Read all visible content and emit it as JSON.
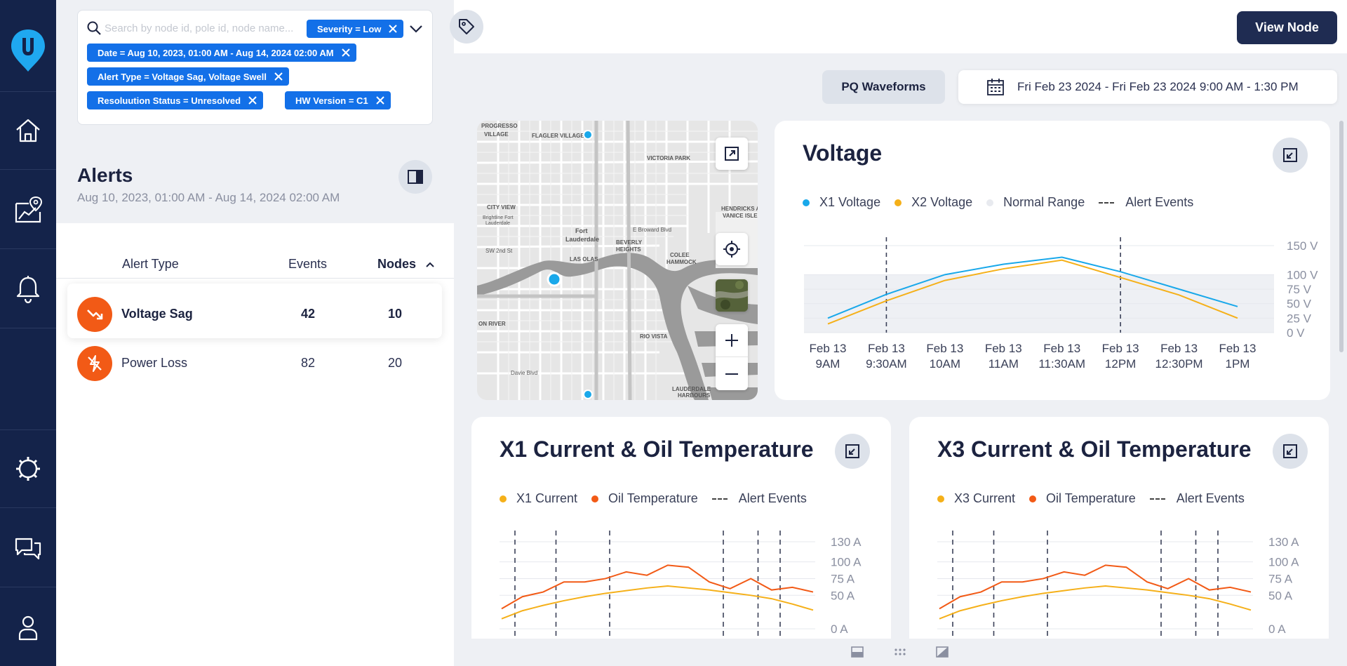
{
  "search": {
    "placeholder": "Search by node id, pole id, node name..."
  },
  "filters": [
    "Severity = Low",
    "Date = Aug 10, 2023, 01:00 AM - Aug 14, 2024 02:00 AM",
    "Alert Type = Voltage Sag, Voltage Swell",
    "Resoluution Status = Unresolved",
    "HW Version = C1"
  ],
  "alerts": {
    "title": "Alerts",
    "subtitle": "Aug 10, 2023, 01:00 AM - Aug 14, 2024 02:00 AM",
    "columns": [
      "Alert Type",
      "Events",
      "Nodes"
    ],
    "rows": [
      {
        "type": "Voltage Sag",
        "events": "42",
        "nodes": "10"
      },
      {
        "type": "Power Loss",
        "events": "82",
        "nodes": "20"
      }
    ]
  },
  "toolbar": {
    "view_node": "View Node",
    "pq_waveforms": "PQ Waveforms",
    "date_range": "Fri Feb 23 2024 - Fri Feb 23 2024 9:00 AM - 1:30 PM"
  },
  "colors": {
    "accent": "#1370e8",
    "sidebar": "#14234a",
    "x1_voltage": "#19a8ea",
    "x2_voltage": "#f5b019",
    "current": "#f5b019",
    "oil": "#f25a16",
    "normal_range": "#eef0f4"
  },
  "map": {
    "labels": [
      "Fort Lauderdale",
      "VICTORIA PARK",
      "FLAGLER VILLAGE",
      "PROGRESSO VILLAGE",
      "CITY VIEW",
      "LAS OLAS",
      "BEVERLY HEIGHTS",
      "COLEE HAMMOCK",
      "HENDRICKS AND VANICE ISLES",
      "RIO VISTA",
      "LAUDERDALE HARBOURS",
      "ON RIVER",
      "E Broward Blvd",
      "Davie Blvd",
      "SW 2nd St",
      "Brightline Fort Lauderdale"
    ]
  },
  "chart_data": [
    {
      "type": "line",
      "title": "Voltage",
      "categories": [
        "Feb 13 9AM",
        "Feb 13 9:30AM",
        "Feb 13 10AM",
        "Feb 13 11AM",
        "Feb 13 11:30AM",
        "Feb 13 12PM",
        "Feb 13 12:30PM",
        "Feb 13 1PM"
      ],
      "y_ticks": [
        "0 V",
        "25 V",
        "50 V",
        "75 V",
        "100 V",
        "150 V"
      ],
      "series": [
        {
          "name": "X1 Voltage",
          "values": [
            25,
            66,
            100,
            118,
            130,
            105,
            75,
            45
          ]
        },
        {
          "name": "X2 Voltage",
          "values": [
            15,
            55,
            90,
            110,
            125,
            95,
            65,
            25
          ]
        }
      ],
      "normal_range": {
        "name": "Normal Range",
        "low": 0,
        "high": 100
      },
      "alert_events": {
        "name": "Alert Events",
        "x": [
          "Feb 13 9:30AM",
          "Feb 13 12PM"
        ]
      },
      "legend": "top-left"
    },
    {
      "type": "line",
      "title": "X1 Current & Oil Temperature",
      "y_ticks": [
        "0 A",
        "50 A",
        "75 A",
        "100 A",
        "130 A"
      ],
      "series": [
        {
          "name": "X1 Current",
          "values": [
            15,
            27,
            35,
            42,
            48,
            53,
            57,
            61,
            64,
            61,
            58,
            54,
            50,
            45,
            37,
            28
          ]
        },
        {
          "name": "Oil Temperature",
          "values": [
            30,
            48,
            55,
            70,
            70,
            75,
            85,
            80,
            95,
            92,
            70,
            60,
            75,
            58,
            62,
            55
          ]
        }
      ],
      "alert_events": {
        "name": "Alert Events",
        "count": 6
      },
      "legend": "top-left"
    },
    {
      "type": "line",
      "title": "X3 Current & Oil Temperature",
      "y_ticks": [
        "0 A",
        "50 A",
        "75 A",
        "100 A",
        "130 A"
      ],
      "series": [
        {
          "name": "X3 Current",
          "values": [
            15,
            27,
            35,
            42,
            48,
            53,
            57,
            61,
            64,
            61,
            58,
            54,
            50,
            45,
            37,
            28
          ]
        },
        {
          "name": "Oil Temperature",
          "values": [
            30,
            48,
            55,
            70,
            70,
            75,
            85,
            80,
            95,
            92,
            70,
            60,
            75,
            58,
            62,
            55
          ]
        }
      ],
      "alert_events": {
        "name": "Alert Events",
        "count": 6
      },
      "legend": "top-left"
    }
  ]
}
